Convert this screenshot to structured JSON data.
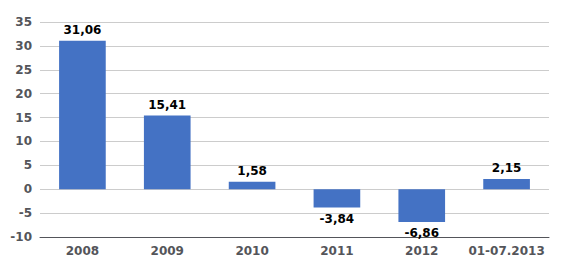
{
  "chart_data": {
    "type": "bar",
    "categories": [
      "2008",
      "2009",
      "2010",
      "2011",
      "2012",
      "01-07.2013"
    ],
    "values": [
      31.06,
      15.41,
      1.58,
      -3.84,
      -6.86,
      2.15
    ],
    "value_labels": [
      "31,06",
      "15,41",
      "1,58",
      "-3,84",
      "-6,86",
      "2,15"
    ],
    "data_labels": true,
    "color": "#4472C4",
    "ylim": [
      -10,
      35
    ],
    "yticks": [
      -10,
      -5,
      0,
      5,
      10,
      15,
      20,
      25,
      30,
      35
    ],
    "grid": true
  }
}
